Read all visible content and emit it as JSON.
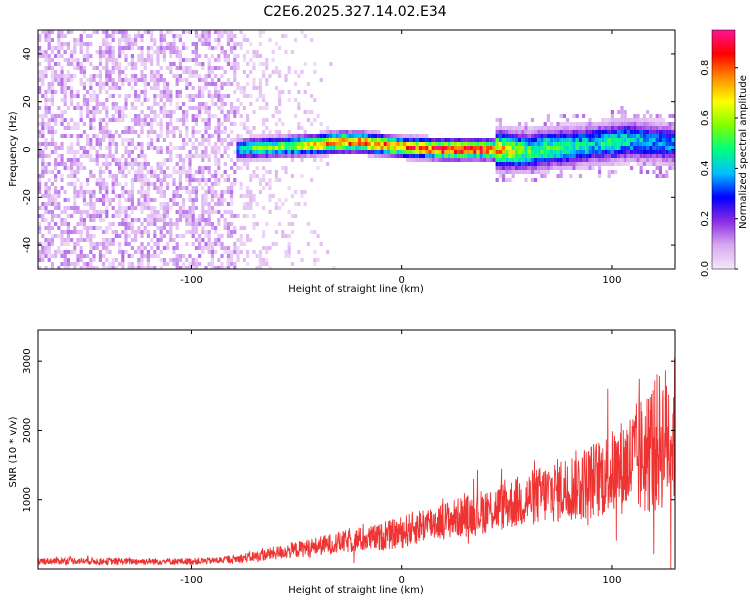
{
  "title": "C2E6.2025.327.14.02.E34",
  "chart_data": [
    {
      "type": "heatmap",
      "xlabel": "Height of straight line (km)",
      "ylabel": "Frequency (Hz)",
      "xlim": [
        -173,
        130
      ],
      "ylim": [
        -50,
        50
      ],
      "x_ticks": [
        -100,
        0,
        100
      ],
      "x_tick_labels": [
        "-100",
        "0",
        "100"
      ],
      "y_ticks": [
        -40,
        -20,
        0,
        20,
        40
      ],
      "y_tick_labels": [
        "-40",
        "-20",
        "0",
        "20",
        "40"
      ],
      "colorbar": {
        "label": "Normalized spectral amplitude",
        "range": [
          0,
          0.95
        ],
        "ticks": [
          0,
          0.2,
          0.4,
          0.6,
          0.8
        ],
        "tick_labels": [
          "0.0",
          "0.2",
          "0.4",
          "0.6",
          "0.8"
        ],
        "colormap": [
          "#f5e8fb",
          "#d8a8f0",
          "#8a2be2",
          "#0000ff",
          "#00bfff",
          "#00ff7f",
          "#7fff00",
          "#ffff00",
          "#ff8c00",
          "#ff0000",
          "#ff1493"
        ]
      },
      "noise_region_x": [
        -173,
        -78
      ],
      "sparse_region_x": [
        -78,
        -30
      ],
      "ridge": {
        "x": [
          -78,
          -70,
          -60,
          -50,
          -40,
          -30,
          -20,
          -10,
          0,
          10,
          20,
          30,
          40,
          50,
          60,
          70,
          80,
          90,
          100,
          110,
          120,
          130
        ],
        "y": [
          0,
          0.5,
          1,
          1.5,
          2,
          3,
          3,
          2,
          1,
          0.5,
          0,
          0,
          0,
          -0.5,
          -1,
          0.5,
          1,
          2,
          3,
          4,
          3,
          2
        ],
        "peak_amplitude": [
          0.45,
          0.55,
          0.6,
          0.65,
          0.75,
          0.85,
          0.8,
          0.85,
          0.8,
          0.88,
          0.95,
          0.92,
          0.9,
          0.7,
          0.55,
          0.55,
          0.5,
          0.45,
          0.5,
          0.45,
          0.4,
          0.4
        ]
      }
    },
    {
      "type": "line",
      "xlabel": "Height of straight line (km)",
      "ylabel": "SNR (10 * v/v)",
      "xlim": [
        -173,
        130
      ],
      "ylim": [
        0,
        3450
      ],
      "x_ticks": [
        -100,
        0,
        100
      ],
      "x_tick_labels": [
        "-100",
        "0",
        "100"
      ],
      "y_ticks": [
        1000,
        2000,
        3000
      ],
      "y_tick_labels": [
        "1000",
        "2000",
        "3000"
      ],
      "series": [
        {
          "color": "#ee3333",
          "x": [
            -173,
            -160,
            -140,
            -120,
            -100,
            -90,
            -80,
            -70,
            -60,
            -50,
            -40,
            -30,
            -20,
            -10,
            0,
            5,
            10,
            20,
            30,
            40,
            50,
            60,
            70,
            80,
            90,
            100,
            105,
            110,
            115,
            120,
            125,
            130
          ],
          "y": [
            110,
            120,
            110,
            110,
            110,
            120,
            140,
            180,
            230,
            280,
            330,
            380,
            420,
            460,
            530,
            580,
            640,
            700,
            760,
            840,
            920,
            1010,
            1100,
            1180,
            1270,
            1390,
            1480,
            1550,
            1640,
            1780,
            1900,
            2000
          ],
          "amplitude": [
            50,
            50,
            50,
            50,
            50,
            50,
            60,
            80,
            100,
            120,
            140,
            160,
            180,
            200,
            230,
            250,
            260,
            270,
            300,
            330,
            360,
            400,
            450,
            500,
            560,
            620,
            700,
            800,
            900,
            1000,
            1050,
            1100
          ]
        }
      ]
    }
  ]
}
